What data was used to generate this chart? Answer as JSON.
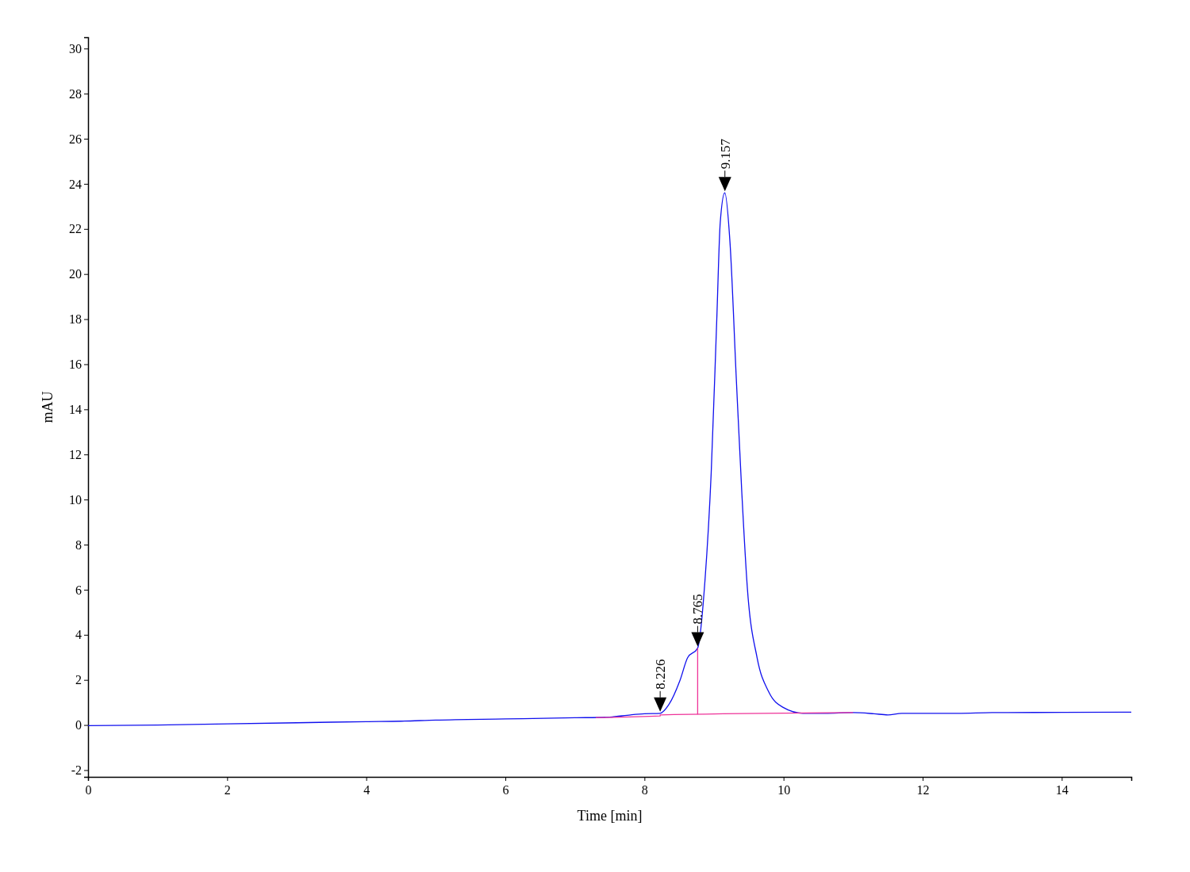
{
  "chart_data": {
    "type": "line",
    "xlabel": "Time [min]",
    "ylabel": "mAU",
    "xlim": [
      0,
      15
    ],
    "ylim": [
      -2.3,
      30.5
    ],
    "xticks": [
      0,
      2,
      4,
      6,
      8,
      10,
      12,
      14
    ],
    "yticks": [
      -2,
      0,
      2,
      4,
      6,
      8,
      10,
      12,
      14,
      16,
      18,
      20,
      22,
      24,
      26,
      28,
      30
    ],
    "marker": "none",
    "line_style": "solid",
    "series": [
      {
        "color": "#1010ee",
        "x": [
          0,
          1,
          2,
          3,
          4,
          4.5,
          5,
          6,
          7,
          7.5,
          7.8,
          8.0,
          8.226,
          8.35,
          8.51,
          8.62,
          8.765,
          8.87,
          8.96,
          9.04,
          9.09,
          9.155,
          9.23,
          9.32,
          9.4,
          9.48,
          9.62,
          9.79,
          10.0,
          10.28,
          10.6,
          11,
          11.3,
          11.5,
          11.7,
          12,
          12.5,
          13,
          14,
          15
        ],
        "values": [
          -0.03,
          0.0,
          0.05,
          0.1,
          0.15,
          0.17,
          0.22,
          0.27,
          0.32,
          0.35,
          0.45,
          0.5,
          0.52,
          0.9,
          1.97,
          2.98,
          3.41,
          6.4,
          11.2,
          18.0,
          22.3,
          23.6,
          21.4,
          15.4,
          10.3,
          6.06,
          2.98,
          1.45,
          0.77,
          0.52,
          0.52,
          0.55,
          0.5,
          0.45,
          0.52,
          0.52,
          0.52,
          0.55,
          0.56,
          0.57
        ]
      },
      {
        "color": "#ee3399",
        "x": [
          7.3,
          8.226,
          8.226,
          11
        ],
        "values": [
          0.33,
          0.4,
          0.45,
          0.55
        ]
      },
      {
        "color": "#ee3399",
        "x": [
          8.765,
          8.765
        ],
        "values": [
          0.47,
          3.41
        ]
      }
    ],
    "annotations": [
      {
        "text": "8.226",
        "x": 8.226,
        "y": 0.52
      },
      {
        "text": "8.765",
        "x": 8.765,
        "y": 3.41
      },
      {
        "text": "9.157",
        "x": 9.157,
        "y": 23.6
      }
    ]
  }
}
